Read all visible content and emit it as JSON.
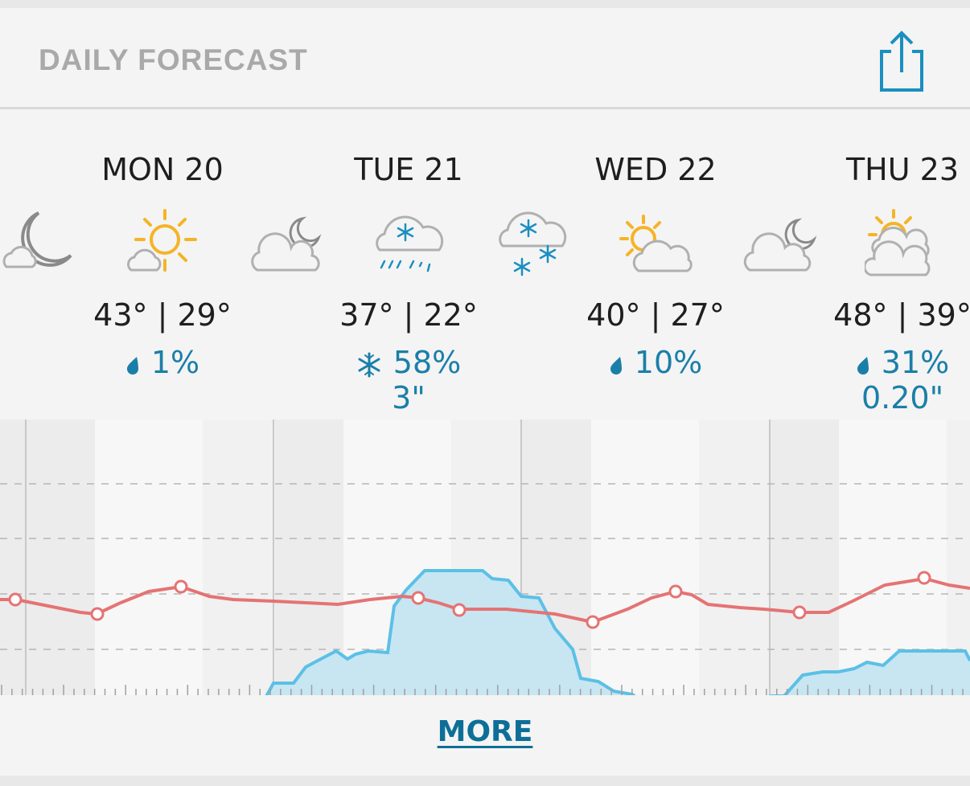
{
  "header": {
    "title": "DAILY FORECAST",
    "share_icon": "share-icon"
  },
  "days": [
    {
      "label": "MON 20",
      "temps": "43° | 29°",
      "precip_icon": "raindrop-icon",
      "precip": "1%",
      "amount": ""
    },
    {
      "label": "TUE 21",
      "temps": "37° | 22°",
      "precip_icon": "snowflake-icon",
      "precip": "58%",
      "amount": "3\""
    },
    {
      "label": "WED 22",
      "temps": "40° | 27°",
      "precip_icon": "raindrop-icon",
      "precip": "10%",
      "amount": ""
    },
    {
      "label": "THU 23",
      "temps": "48° | 39°",
      "precip_icon": "raindrop-icon",
      "precip": "31%",
      "amount": "0.20\""
    }
  ],
  "icons": [
    "moon-cloud-icon",
    "sun-cloud-icon",
    "moon-cloud-icon",
    "snow-rain-cloud-icon",
    "snow-cloud-icon",
    "sun-cloud-icon",
    "moon-cloud-icon",
    "sun-cloud-icon"
  ],
  "colors": {
    "temperature": "#e57373",
    "precipitation": "#5bc0e6",
    "accent": "#1a7fa8",
    "sun": "#f5b427"
  },
  "footer": {
    "more_label": "MORE"
  }
}
